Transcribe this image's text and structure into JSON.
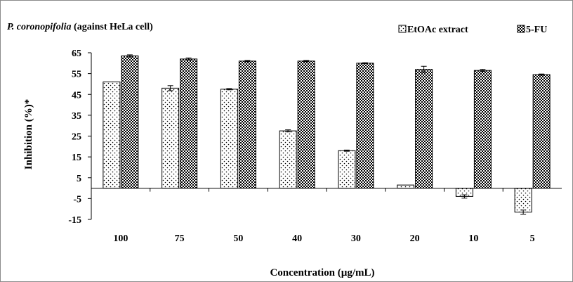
{
  "chart_data": {
    "type": "bar",
    "title_italic": "P. coronopifolia",
    "title_rest": " (against HeLa cell)",
    "xlabel": "Concentration (µg/mL)",
    "ylabel": "Inhibition (%)*",
    "categories": [
      "100",
      "75",
      "50",
      "40",
      "30",
      "20",
      "10",
      "5"
    ],
    "ylim": [
      -15,
      65
    ],
    "yticks": [
      65,
      55,
      45,
      35,
      25,
      15,
      5,
      -5,
      -15
    ],
    "grid": false,
    "legend_position": "top-right",
    "series": [
      {
        "name": "EtOAc extract",
        "values": [
          51,
          48,
          47.5,
          27.5,
          18,
          1.5,
          -4,
          -11.5
        ],
        "errors": [
          0,
          1.2,
          0.3,
          0.5,
          0.3,
          0,
          0.8,
          1.0
        ],
        "pattern": "dots"
      },
      {
        "name": "5-FU",
        "values": [
          63.5,
          62,
          61,
          61,
          60,
          57,
          56.5,
          54.5
        ],
        "errors": [
          0.5,
          0.5,
          0.3,
          0.3,
          0.2,
          1.5,
          0.5,
          0.3
        ],
        "pattern": "checker"
      }
    ]
  }
}
